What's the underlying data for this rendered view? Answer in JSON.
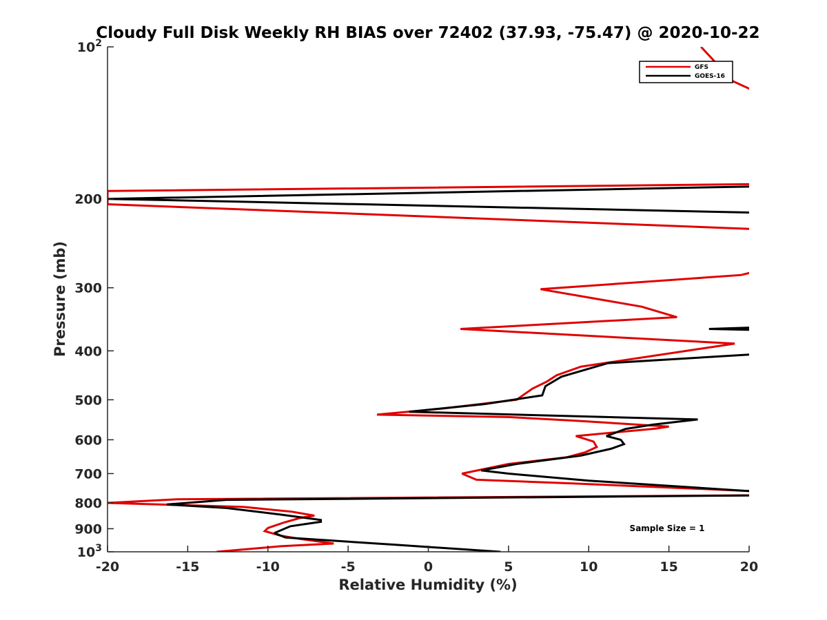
{
  "chart_data": {
    "type": "line",
    "title": "Cloudy Full Disk Weekly RH BIAS over 72402 (37.93, -75.47) @ 2020-10-22",
    "xlabel": "Relative Humidity (%)",
    "ylabel": "Pressure (mb)",
    "xlim": [
      -20,
      20
    ],
    "ylim": [
      100,
      1000
    ],
    "yscale": "log",
    "y_reversed": true,
    "x_ticks": [
      "-20",
      "-15",
      "-10",
      "-5",
      "0",
      "5",
      "10",
      "15",
      "20"
    ],
    "y_ticks": [
      {
        "value": 100,
        "label": "10",
        "exp": "2"
      },
      {
        "value": 200,
        "label": "200",
        "exp": ""
      },
      {
        "value": 300,
        "label": "300",
        "exp": ""
      },
      {
        "value": 400,
        "label": "400",
        "exp": ""
      },
      {
        "value": 500,
        "label": "500",
        "exp": ""
      },
      {
        "value": 600,
        "label": "600",
        "exp": ""
      },
      {
        "value": 700,
        "label": "700",
        "exp": ""
      },
      {
        "value": 800,
        "label": "800",
        "exp": ""
      },
      {
        "value": 900,
        "label": "900",
        "exp": ""
      },
      {
        "value": 1000,
        "label": "10",
        "exp": "3"
      }
    ],
    "legend_position": "top-right",
    "annotation": "Sample Size = 1",
    "colors": {
      "GFS": "#e00000",
      "GOES-16": "#000000"
    },
    "series": [
      {
        "name": "GFS",
        "color": "#e00000",
        "points": [
          [
            -13.2,
            1000
          ],
          [
            -9.2,
            975
          ],
          [
            -5.9,
            963
          ],
          [
            -8.0,
            943
          ],
          [
            -9.2,
            929
          ],
          [
            -10.2,
            910
          ],
          [
            -10.0,
            897
          ],
          [
            -9.0,
            875
          ],
          [
            -8.0,
            857
          ],
          [
            -7.1,
            848
          ],
          [
            -8.5,
            833
          ],
          [
            -11.5,
            815
          ],
          [
            -20.0,
            800
          ],
          [
            -15.6,
            787
          ],
          [
            20.0,
            773
          ],
          [
            20.5,
            759
          ],
          [
            9.0,
            732
          ],
          [
            3.0,
            720
          ],
          [
            2.1,
            700
          ],
          [
            5.0,
            670
          ],
          [
            8.6,
            650
          ],
          [
            9.8,
            635
          ],
          [
            10.5,
            620
          ],
          [
            10.3,
            605
          ],
          [
            9.2,
            590
          ],
          [
            14.2,
            570
          ],
          [
            15.0,
            565
          ],
          [
            9.2,
            550
          ],
          [
            5.0,
            541
          ],
          [
            -3.2,
            535
          ],
          [
            1.0,
            520
          ],
          [
            5.5,
            500
          ],
          [
            6.5,
            475
          ],
          [
            7.4,
            460
          ],
          [
            8.0,
            447
          ],
          [
            9.5,
            430
          ],
          [
            19.1,
            387
          ],
          [
            2.0,
            362
          ],
          [
            15.5,
            343
          ],
          [
            13.3,
            327
          ],
          [
            7.0,
            302
          ],
          [
            19.5,
            283
          ],
          [
            20.5,
            278
          ],
          [
            21.0,
            230
          ],
          [
            -20.0,
            205
          ],
          [
            -20.0,
            193
          ],
          [
            20.5,
            187
          ],
          [
            20.5,
            123
          ],
          [
            19.0,
            117
          ],
          [
            17.0,
            100
          ]
        ]
      },
      {
        "name": "GOES-16",
        "color": "#000000",
        "points": [
          [
            4.5,
            1000
          ],
          [
            -1.9,
            969
          ],
          [
            -8.9,
            937
          ],
          [
            -9.6,
            918
          ],
          [
            -8.6,
            890
          ],
          [
            -6.7,
            872
          ],
          [
            -6.7,
            865
          ],
          [
            -9.2,
            844
          ],
          [
            -12.6,
            819
          ],
          [
            -16.3,
            806
          ],
          [
            -12.6,
            789
          ],
          [
            21.0,
            773
          ],
          [
            20.5,
            760
          ],
          [
            10.0,
            723
          ],
          [
            5.0,
            700
          ],
          [
            3.3,
            690
          ],
          [
            5.5,
            670
          ],
          [
            9.5,
            645
          ],
          [
            11.4,
            625
          ],
          [
            12.2,
            612
          ],
          [
            12.0,
            600
          ],
          [
            11.1,
            590
          ],
          [
            12.3,
            571
          ],
          [
            14.0,
            560
          ],
          [
            16.8,
            547
          ],
          [
            -1.2,
            528
          ],
          [
            3.5,
            510
          ],
          [
            7.1,
            490
          ],
          [
            7.3,
            470
          ],
          [
            8.3,
            450
          ],
          [
            11.2,
            423
          ],
          [
            21.0,
            405
          ],
          [
            21.0,
            364
          ],
          [
            17.5,
            362
          ],
          [
            21.0,
            359
          ],
          [
            20.5,
            213
          ],
          [
            -20.0,
            200
          ],
          [
            20.5,
            189
          ]
        ]
      }
    ]
  }
}
